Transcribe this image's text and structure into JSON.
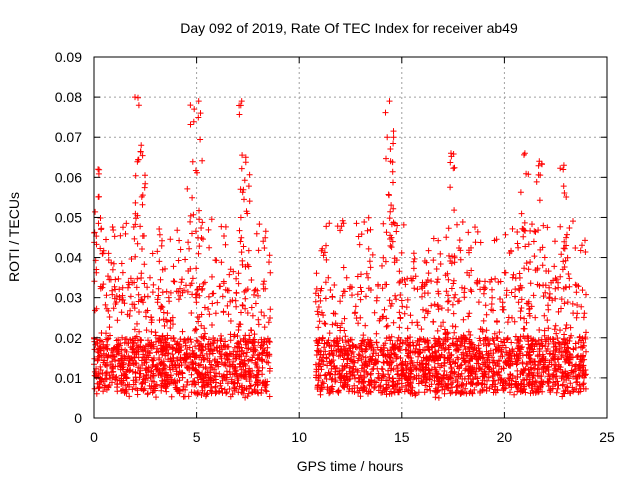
{
  "chart_data": {
    "type": "scatter",
    "title": "Day 092 of 2019, Rate Of TEC Index for receiver ab49",
    "xlabel": "GPS time / hours",
    "ylabel": "ROTI / TECUs",
    "xlim": [
      0,
      25
    ],
    "ylim": [
      0,
      0.09
    ],
    "x_ticks": [
      "0",
      "5",
      "10",
      "15",
      "20",
      "25"
    ],
    "x_tick_values": [
      0,
      5,
      10,
      15,
      20,
      25
    ],
    "y_ticks": [
      "0",
      "0.01",
      "0.02",
      "0.03",
      "0.04",
      "0.05",
      "0.06",
      "0.07",
      "0.08",
      "0.09"
    ],
    "y_tick_values": [
      0,
      0.01,
      0.02,
      0.03,
      0.04,
      0.05,
      0.06,
      0.07,
      0.08,
      0.09
    ],
    "grid": true,
    "marker": "+",
    "color": "#ff0000",
    "series": [
      {
        "segments": [
          {
            "x_start": 0.0,
            "x_end": 8.6
          },
          {
            "x_start": 10.8,
            "x_end": 24.0
          }
        ],
        "typical_range": [
          0.005,
          0.035
        ],
        "notable_peaks": [
          {
            "x": 0.2,
            "y": 0.062
          },
          {
            "x": 2.0,
            "y": 0.08
          },
          {
            "x": 2.3,
            "y": 0.068
          },
          {
            "x": 4.7,
            "y": 0.078
          },
          {
            "x": 5.1,
            "y": 0.079
          },
          {
            "x": 7.2,
            "y": 0.079
          },
          {
            "x": 7.4,
            "y": 0.065
          },
          {
            "x": 14.4,
            "y": 0.079
          },
          {
            "x": 14.6,
            "y": 0.07
          },
          {
            "x": 17.4,
            "y": 0.066
          },
          {
            "x": 21.0,
            "y": 0.066
          },
          {
            "x": 21.7,
            "y": 0.064
          },
          {
            "x": 22.9,
            "y": 0.063
          }
        ]
      }
    ]
  }
}
